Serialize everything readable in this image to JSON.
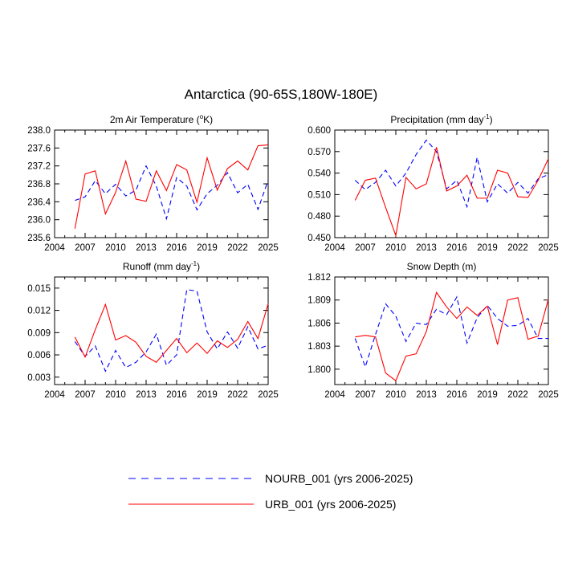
{
  "figure": {
    "title": "Antarctica (90-65S,180W-180E)",
    "legend": [
      {
        "label": "NOURB_001 (yrs 2006-2025)",
        "color": "#0000ff",
        "style": "dashed"
      },
      {
        "label": "URB_001 (yrs 2006-2025)",
        "color": "#ff0000",
        "style": "solid"
      }
    ]
  },
  "chart_data": [
    {
      "type": "line",
      "title": "2m Air Temperature (",
      "title_sup": "o",
      "title_suffix": "K)",
      "x_ticks": [
        "2004",
        "2007",
        "2010",
        "2013",
        "2016",
        "2019",
        "2022",
        "2025"
      ],
      "xlim": [
        2004,
        2025
      ],
      "ylim": [
        235.6,
        238.0
      ],
      "y_ticks": [
        "235.6",
        "236.0",
        "236.4",
        "236.8",
        "237.2",
        "237.6",
        "238.0"
      ],
      "x": [
        2006,
        2007,
        2008,
        2009,
        2010,
        2011,
        2012,
        2013,
        2014,
        2015,
        2016,
        2017,
        2018,
        2019,
        2020,
        2021,
        2022,
        2023,
        2024,
        2025
      ],
      "series": [
        {
          "name": "NOURB_001",
          "color": "#0000ff",
          "style": "dashed",
          "values": [
            236.43,
            236.51,
            236.87,
            236.58,
            236.79,
            236.53,
            236.66,
            237.2,
            236.75,
            236.02,
            236.94,
            236.75,
            236.22,
            236.58,
            236.77,
            237.05,
            236.6,
            236.79,
            236.23,
            236.88
          ]
        },
        {
          "name": "URB_001",
          "color": "#ff0000",
          "style": "solid",
          "values": [
            235.8,
            237.02,
            237.09,
            236.13,
            236.61,
            237.31,
            236.46,
            236.41,
            237.09,
            236.65,
            237.23,
            237.11,
            236.39,
            237.38,
            236.66,
            237.14,
            237.31,
            237.11,
            237.65,
            237.67
          ]
        }
      ]
    },
    {
      "type": "line",
      "title": "Precipitation (mm day",
      "title_sup": "-1",
      "title_suffix": ")",
      "x_ticks": [
        "2004",
        "2007",
        "2010",
        "2013",
        "2016",
        "2019",
        "2022",
        "2025"
      ],
      "xlim": [
        2004,
        2025
      ],
      "ylim": [
        0.45,
        0.6
      ],
      "y_ticks": [
        "0.450",
        "0.480",
        "0.510",
        "0.540",
        "0.570",
        "0.600"
      ],
      "x": [
        2006,
        2007,
        2008,
        2009,
        2010,
        2011,
        2012,
        2013,
        2014,
        2015,
        2016,
        2017,
        2018,
        2019,
        2020,
        2021,
        2022,
        2023,
        2024,
        2025
      ],
      "series": [
        {
          "name": "NOURB_001",
          "color": "#0000ff",
          "style": "dashed",
          "values": [
            0.53,
            0.517,
            0.527,
            0.544,
            0.522,
            0.54,
            0.566,
            0.586,
            0.57,
            0.518,
            0.53,
            0.493,
            0.562,
            0.5,
            0.525,
            0.512,
            0.527,
            0.512,
            0.532,
            0.538
          ]
        },
        {
          "name": "URB_001",
          "color": "#ff0000",
          "style": "solid",
          "values": [
            0.502,
            0.53,
            0.533,
            0.492,
            0.453,
            0.534,
            0.518,
            0.525,
            0.576,
            0.515,
            0.522,
            0.537,
            0.505,
            0.505,
            0.544,
            0.54,
            0.507,
            0.506,
            0.53,
            0.56
          ]
        }
      ]
    },
    {
      "type": "line",
      "title": "Runoff (mm day",
      "title_sup": "-1",
      "title_suffix": ")",
      "x_ticks": [
        "2004",
        "2007",
        "2010",
        "2013",
        "2016",
        "2019",
        "2022",
        "2025"
      ],
      "xlim": [
        2004,
        2025
      ],
      "ylim": [
        0.002,
        0.0165
      ],
      "y_ticks": [
        "0.003",
        "0.006",
        "0.009",
        "0.012",
        "0.015"
      ],
      "y_tick_values": [
        0.003,
        0.006,
        0.009,
        0.012,
        0.015
      ],
      "x": [
        2006,
        2007,
        2008,
        2009,
        2010,
        2011,
        2012,
        2013,
        2014,
        2015,
        2016,
        2017,
        2018,
        2019,
        2020,
        2021,
        2022,
        2023,
        2024,
        2025
      ],
      "series": [
        {
          "name": "NOURB_001",
          "color": "#0000ff",
          "style": "dashed",
          "values": [
            0.0078,
            0.0058,
            0.0072,
            0.0038,
            0.0066,
            0.0043,
            0.005,
            0.0064,
            0.0088,
            0.0046,
            0.006,
            0.0148,
            0.0146,
            0.0091,
            0.0068,
            0.0091,
            0.0069,
            0.0098,
            0.0068,
            0.0073
          ]
        },
        {
          "name": "URB_001",
          "color": "#ff0000",
          "style": "solid",
          "values": [
            0.0084,
            0.0057,
            0.0094,
            0.0128,
            0.008,
            0.0086,
            0.0077,
            0.0058,
            0.005,
            0.0066,
            0.0082,
            0.0063,
            0.0076,
            0.0062,
            0.0079,
            0.007,
            0.0081,
            0.0105,
            0.0082,
            0.0129
          ]
        }
      ]
    },
    {
      "type": "line",
      "title": "Snow Depth (m)",
      "title_sup": "",
      "title_suffix": "",
      "x_ticks": [
        "2004",
        "2007",
        "2010",
        "2013",
        "2016",
        "2019",
        "2022",
        "2025"
      ],
      "xlim": [
        2004,
        2025
      ],
      "ylim": [
        1.798,
        1.812
      ],
      "y_ticks": [
        "1.800",
        "1.803",
        "1.806",
        "1.809",
        "1.812"
      ],
      "y_tick_values": [
        1.8,
        1.803,
        1.806,
        1.809,
        1.812
      ],
      "x": [
        2006,
        2007,
        2008,
        2009,
        2010,
        2011,
        2012,
        2013,
        2014,
        2015,
        2016,
        2017,
        2018,
        2019,
        2020,
        2021,
        2022,
        2023,
        2024,
        2025
      ],
      "series": [
        {
          "name": "NOURB_001",
          "color": "#0000ff",
          "style": "dashed",
          "values": [
            1.804,
            1.8003,
            1.8045,
            1.8085,
            1.8069,
            1.8036,
            1.806,
            1.8058,
            1.8078,
            1.8071,
            1.8094,
            1.8034,
            1.8067,
            1.8083,
            1.8066,
            1.8056,
            1.8057,
            1.8066,
            1.804,
            1.804
          ]
        },
        {
          "name": "URB_001",
          "color": "#ff0000",
          "style": "solid",
          "values": [
            1.8042,
            1.8044,
            1.8042,
            1.7995,
            1.7985,
            1.8017,
            1.802,
            1.8049,
            1.81,
            1.8081,
            1.8066,
            1.8081,
            1.807,
            1.8082,
            1.8032,
            1.809,
            1.8093,
            1.8039,
            1.8043,
            1.8091
          ]
        }
      ]
    }
  ]
}
